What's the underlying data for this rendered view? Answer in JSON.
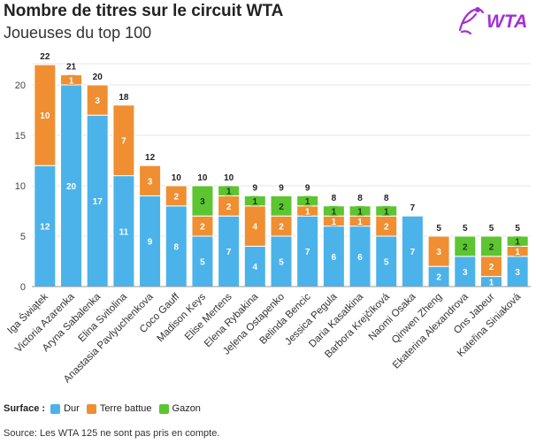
{
  "header": {
    "title": "Nombre de titres sur le circuit WTA",
    "subtitle": "Joueuses du top 100"
  },
  "logo": {
    "text": "WTA",
    "icon": "wta-logo-icon",
    "color": "#a22fd6"
  },
  "legend": {
    "title": "Surface :",
    "items": [
      {
        "label": "Dur",
        "color": "#4bb3ea"
      },
      {
        "label": "Terre battue",
        "color": "#ef8f32"
      },
      {
        "label": "Gazon",
        "color": "#5cc531"
      }
    ]
  },
  "source": "Source: Les WTA 125 ne sont pas pris en compte.",
  "chart_data": {
    "type": "bar",
    "stacked": true,
    "title": "Nombre de titres sur le circuit WTA",
    "subtitle": "Joueuses du top 100",
    "xlabel": "",
    "ylabel": "",
    "ylim": [
      0,
      22
    ],
    "yticks": [
      0,
      5,
      10,
      15,
      20
    ],
    "grid": true,
    "categories": [
      "Iga Świątek",
      "Victoria Azarenka",
      "Aryna Sabalenka",
      "Elina Svitolina",
      "Anastasia Pavlyuchenkova",
      "Coco Gauff",
      "Madison Keys",
      "Elise Mertens",
      "Elena Rybakina",
      "Jeļena Ostapenko",
      "Belinda Bencic",
      "Jessica Pegula",
      "Daria Kasatkina",
      "Barbora Krejčíková",
      "Naomi Osaka",
      "Qinwen Zheng",
      "Ekaterina Alexandrova",
      "Ons Jabeur",
      "Kateřina Siniaková"
    ],
    "series": [
      {
        "name": "Dur",
        "color": "#4bb3ea",
        "values": [
          12,
          20,
          17,
          11,
          9,
          8,
          5,
          7,
          4,
          5,
          7,
          6,
          6,
          5,
          7,
          2,
          3,
          1,
          3
        ]
      },
      {
        "name": "Terre battue",
        "color": "#ef8f32",
        "values": [
          10,
          1,
          3,
          7,
          3,
          2,
          2,
          2,
          4,
          2,
          1,
          1,
          1,
          2,
          0,
          3,
          0,
          2,
          1
        ]
      },
      {
        "name": "Gazon",
        "color": "#5cc531",
        "values": [
          0,
          0,
          0,
          0,
          0,
          0,
          3,
          1,
          1,
          2,
          1,
          1,
          1,
          1,
          0,
          0,
          2,
          2,
          1
        ]
      }
    ],
    "totals": [
      22,
      21,
      20,
      18,
      12,
      10,
      10,
      10,
      9,
      9,
      9,
      8,
      8,
      8,
      7,
      5,
      5,
      5,
      5
    ]
  }
}
